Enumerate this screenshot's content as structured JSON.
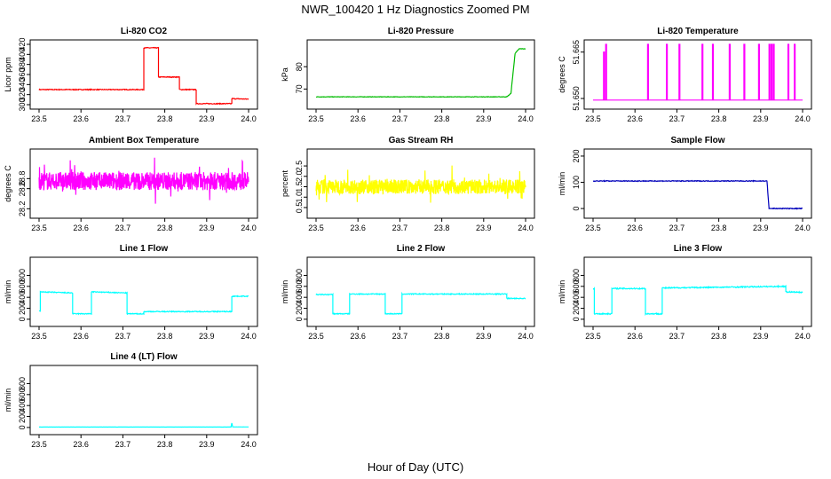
{
  "figure": {
    "title": "NWR_100420  1 Hz Diagnostics Zoomed PM",
    "xlabel": "Hour of Day (UTC)"
  },
  "chart_data": [
    {
      "type": "line",
      "title": "Li-820 CO2",
      "ylabel": "Licor ppm",
      "color": "#ff0000",
      "xlim": [
        23.5,
        24.0
      ],
      "xticks": [
        "23.5",
        "23.6",
        "23.7",
        "23.8",
        "23.9",
        "24.0"
      ],
      "ylim": [
        300,
        420
      ],
      "yticks": [
        "300",
        "320",
        "340",
        "360",
        "380",
        "400",
        "420"
      ],
      "x": [
        23.5,
        23.75,
        23.75,
        23.785,
        23.785,
        23.835,
        23.835,
        23.875,
        23.875,
        23.96,
        23.96,
        24.0
      ],
      "y": [
        330,
        330,
        413,
        413,
        355,
        355,
        330,
        330,
        302,
        302,
        312,
        311
      ],
      "noise": 0.8
    },
    {
      "type": "line",
      "title": "Li-820 Pressure",
      "ylabel": "kPa",
      "color": "#00bb00",
      "xlim": [
        23.5,
        24.0
      ],
      "xticks": [
        "23.5",
        "23.6",
        "23.7",
        "23.8",
        "23.9",
        "24.0"
      ],
      "ylim": [
        63,
        90
      ],
      "yticks": [
        "70",
        "80"
      ],
      "x": [
        23.5,
        23.955,
        23.965,
        23.975,
        23.985,
        24.0
      ],
      "y": [
        66.5,
        66.5,
        68,
        86,
        88,
        88
      ],
      "noise": 0.1
    },
    {
      "type": "line",
      "title": "Li-820 Temperature",
      "ylabel": "degrees C",
      "color": "#ff00ff",
      "xlim": [
        23.5,
        24.0
      ],
      "xticks": [
        "23.5",
        "23.6",
        "23.7",
        "23.8",
        "23.9",
        "24.0"
      ],
      "ylim": [
        51.648,
        51.6675
      ],
      "yticks": [
        "51.650",
        "51.665"
      ],
      "baseline": 51.6495,
      "spike_x": [
        23.525,
        23.53,
        23.63,
        23.675,
        23.705,
        23.76,
        23.785,
        23.825,
        23.86,
        23.895,
        23.92,
        23.925,
        23.93,
        23.965,
        23.98
      ],
      "spike_y": [
        51.665,
        51.6675,
        51.6675,
        51.6675,
        51.6675,
        51.6675,
        51.6675,
        51.6675,
        51.6675,
        51.6675,
        51.6675,
        51.6675,
        51.6675,
        51.6675,
        51.6675
      ]
    },
    {
      "type": "line",
      "title": "Ambient Box Temperature",
      "ylabel": "degrees C",
      "color": "#ff00ff",
      "xlim": [
        23.5,
        24.0
      ],
      "xticks": [
        "23.5",
        "23.6",
        "23.7",
        "23.8",
        "23.9",
        "24.0"
      ],
      "ylim": [
        28.1,
        29.3
      ],
      "yticks": [
        "28.2",
        "28.6",
        "28.8"
      ],
      "mean": 28.75,
      "noise": 0.18
    },
    {
      "type": "line",
      "title": "Gas Stream RH",
      "ylabel": "percent",
      "color": "#ffff00",
      "xlim": [
        23.5,
        24.0
      ],
      "xticks": [
        "23.5",
        "23.6",
        "23.7",
        "23.8",
        "23.9",
        "24.0"
      ],
      "ylim": [
        0.2,
        3.1
      ],
      "yticks": [
        "0.5",
        "1.0",
        "1.5",
        "2.0",
        "2.5"
      ],
      "mean": 1.5,
      "noise": 0.35
    },
    {
      "type": "line",
      "title": "Sample Flow",
      "ylabel": "ml/min",
      "color": "#0000bb",
      "xlim": [
        23.5,
        24.0
      ],
      "xticks": [
        "23.5",
        "23.6",
        "23.7",
        "23.8",
        "23.9",
        "24.0"
      ],
      "ylim": [
        -20,
        210
      ],
      "yticks": [
        "0",
        "100",
        "200"
      ],
      "x": [
        23.5,
        23.915,
        23.92,
        24.0
      ],
      "y": [
        105,
        105,
        0,
        0
      ],
      "noise": 1.5
    },
    {
      "type": "line",
      "title": "Line 1 Flow",
      "ylabel": "ml/min",
      "color": "#00ffff",
      "xlim": [
        23.5,
        24.0
      ],
      "xticks": [
        "23.5",
        "23.6",
        "23.7",
        "23.8",
        "23.9",
        "24.0"
      ],
      "ylim": [
        -50,
        1050
      ],
      "yticks": [
        "0",
        "200",
        "400",
        "600",
        "800"
      ],
      "x": [
        23.5,
        23.503,
        23.503,
        23.58,
        23.58,
        23.625,
        23.625,
        23.71,
        23.71,
        23.75,
        23.75,
        23.96,
        23.96,
        24.0
      ],
      "y": [
        150,
        150,
        500,
        480,
        100,
        100,
        500,
        480,
        100,
        100,
        140,
        140,
        420,
        420
      ],
      "noise": 8
    },
    {
      "type": "line",
      "title": "Line 2 Flow",
      "ylabel": "ml/min",
      "color": "#00ffff",
      "xlim": [
        23.5,
        24.0
      ],
      "xticks": [
        "23.5",
        "23.6",
        "23.7",
        "23.8",
        "23.9",
        "24.0"
      ],
      "ylim": [
        -50,
        1050
      ],
      "yticks": [
        "0",
        "200",
        "400",
        "600",
        "800"
      ],
      "x": [
        23.5,
        23.54,
        23.54,
        23.58,
        23.58,
        23.665,
        23.665,
        23.705,
        23.705,
        23.955,
        23.955,
        24.0
      ],
      "y": [
        450,
        450,
        100,
        100,
        460,
        460,
        100,
        100,
        460,
        460,
        380,
        380
      ],
      "noise": 8
    },
    {
      "type": "line",
      "title": "Line 3 Flow",
      "ylabel": "ml/min",
      "color": "#00ffff",
      "xlim": [
        23.5,
        24.0
      ],
      "xticks": [
        "23.5",
        "23.6",
        "23.7",
        "23.8",
        "23.9",
        "24.0"
      ],
      "ylim": [
        -50,
        1050
      ],
      "yticks": [
        "0",
        "200",
        "400",
        "600",
        "800"
      ],
      "x": [
        23.5,
        23.503,
        23.503,
        23.545,
        23.545,
        23.625,
        23.625,
        23.665,
        23.665,
        23.96,
        23.96,
        24.0
      ],
      "y": [
        550,
        550,
        100,
        100,
        560,
        560,
        100,
        100,
        570,
        600,
        500,
        490
      ],
      "noise": 10
    },
    {
      "type": "line",
      "title": "Line 4 (LT) Flow",
      "ylabel": "ml/min",
      "color": "#00ffff",
      "xlim": [
        23.5,
        24.0
      ],
      "xticks": [
        "23.5",
        "23.6",
        "23.7",
        "23.8",
        "23.9",
        "24.0"
      ],
      "ylim": [
        -50,
        1050
      ],
      "yticks": [
        "0",
        "200",
        "400",
        "600",
        "800"
      ],
      "x": [
        23.5,
        23.958,
        23.96,
        23.962,
        24.0
      ],
      "y": [
        8,
        8,
        80,
        10,
        10
      ],
      "noise": 1
    }
  ]
}
